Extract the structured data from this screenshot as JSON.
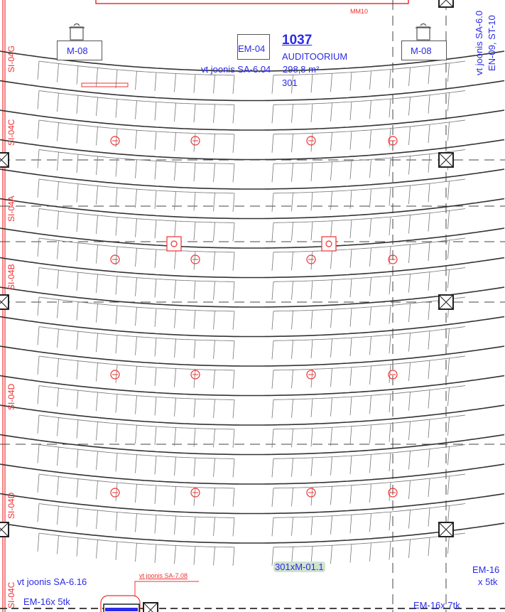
{
  "room": {
    "number": "1037",
    "name": "AUDITOORIUM",
    "area": "298,8 m²",
    "seats": "301"
  },
  "labels": {
    "mm10": "MM10",
    "em04": "EM-04",
    "m08_left": "M-08",
    "m08_right": "M-08",
    "ref_top": "vt joonis SA-6.04",
    "ref_top_right_1": "vt joonis SA-6.0",
    "ref_top_right_2": "EN-09, ST-10",
    "seat_count": "301xM-01.1",
    "ref_bottom_left": "vt joonis SA-6.16",
    "ref_bottom_red": "vt joonis SA-7.08",
    "em16_left": "EM-16x 5tk",
    "em16_bottom": "EM-16x 7tk",
    "em16_right_1": "EM-16",
    "em16_right_2": "x 5tk"
  },
  "section_marks": [
    "SI-04G",
    "SI-04C",
    "SI-04A",
    "SI-04B",
    "SI-04D",
    "SI-04D",
    "SI-04C"
  ],
  "colors": {
    "annotation": "#2a2ae8",
    "markup": "#f03030",
    "lines": "#333333",
    "highlight": "#cfe3cf"
  }
}
